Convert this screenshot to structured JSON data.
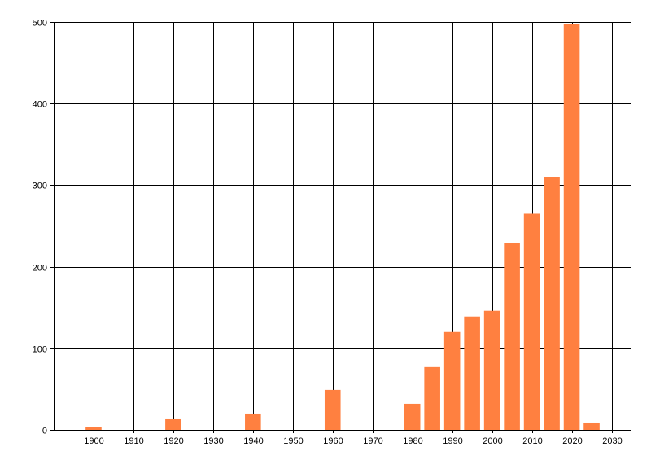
{
  "chart_data": {
    "type": "bar",
    "title": "",
    "xlabel": "",
    "ylabel": "",
    "x": [
      1900,
      1920,
      1940,
      1960,
      1980,
      1985,
      1990,
      1995,
      2000,
      2005,
      2010,
      2015,
      2020,
      2025
    ],
    "values": [
      3,
      13,
      20,
      49,
      32,
      77,
      120,
      139,
      146,
      229,
      265,
      310,
      497,
      9
    ],
    "xlim": [
      1890,
      2035
    ],
    "ylim": [
      0,
      500
    ],
    "xticks": [
      1900,
      1910,
      1920,
      1930,
      1940,
      1950,
      1960,
      1970,
      1980,
      1990,
      2000,
      2010,
      2020,
      2030
    ],
    "yticks": [
      0,
      100,
      200,
      300,
      400,
      500
    ],
    "grid": true,
    "bar_color": "#ff8040"
  }
}
